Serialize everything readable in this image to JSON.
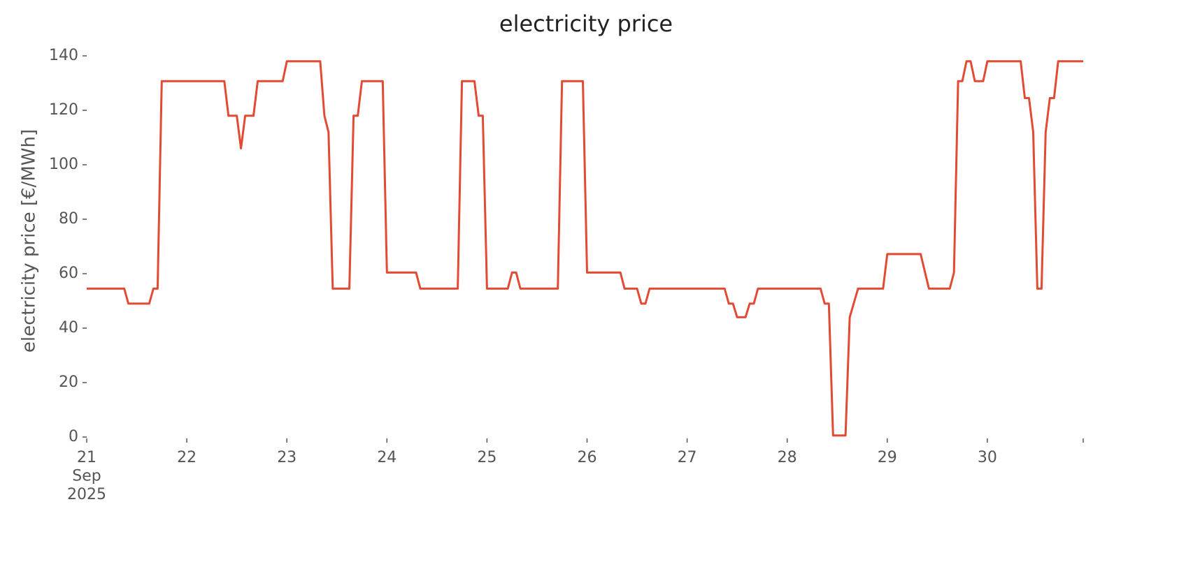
{
  "chart_data": {
    "type": "line",
    "title": "electricity price",
    "ylabel": "electricity price [€/MWh]",
    "xlim": [
      "2025-09-21T00:00",
      "2025-09-30T23:00"
    ],
    "xticks": [
      {
        "value": "2025-09-21T00:00",
        "label": "21\nSep\n2025"
      },
      {
        "value": "2025-09-22T00:00",
        "label": "22"
      },
      {
        "value": "2025-09-23T00:00",
        "label": "23"
      },
      {
        "value": "2025-09-24T00:00",
        "label": "24"
      },
      {
        "value": "2025-09-25T00:00",
        "label": "25"
      },
      {
        "value": "2025-09-26T00:00",
        "label": "26"
      },
      {
        "value": "2025-09-27T00:00",
        "label": "27"
      },
      {
        "value": "2025-09-28T00:00",
        "label": "28"
      },
      {
        "value": "2025-09-29T00:00",
        "label": "29"
      },
      {
        "value": "2025-09-30T00:00",
        "label": "30"
      }
    ],
    "ylim": [
      0,
      140
    ],
    "yticks": [
      0,
      20,
      40,
      60,
      80,
      100,
      120,
      140
    ],
    "grid": false,
    "x": [
      0,
      9,
      10,
      15,
      16,
      17,
      18,
      33,
      34,
      36,
      37,
      38,
      40,
      41,
      47,
      48,
      56,
      57,
      58,
      59,
      63,
      64,
      65,
      66,
      71,
      72,
      79,
      80,
      89,
      90,
      93,
      94,
      95,
      96,
      101,
      102,
      103,
      104,
      113,
      114,
      119,
      120,
      128,
      129,
      132,
      133,
      134,
      135,
      153,
      154,
      155,
      156,
      158,
      159,
      160,
      161,
      176,
      177,
      178,
      179,
      182,
      183,
      185,
      191,
      192,
      200,
      202,
      207,
      208,
      209,
      210,
      211,
      212,
      213,
      215,
      216,
      224,
      225,
      226,
      227,
      228,
      229,
      230,
      231,
      232,
      233,
      239
    ],
    "series": [
      {
        "name": "electricity price",
        "color": "#e24a33",
        "values": [
          54.5,
          54.5,
          49,
          49,
          54.5,
          54.5,
          130.7,
          130.7,
          118,
          118,
          106,
          118,
          118,
          130.7,
          130.7,
          138,
          138,
          118,
          112,
          54.5,
          54.5,
          118,
          118,
          130.7,
          130.7,
          60.4,
          60.4,
          54.5,
          54.5,
          130.7,
          130.7,
          118,
          118,
          54.5,
          54.5,
          60.4,
          60.4,
          54.5,
          54.5,
          130.7,
          130.7,
          60.4,
          60.4,
          54.5,
          54.5,
          49,
          49,
          54.5,
          54.5,
          49,
          49,
          44,
          44,
          49,
          49,
          54.5,
          54.5,
          49,
          49,
          0.6,
          0.6,
          44,
          54.5,
          54.5,
          67.2,
          67.2,
          54.5,
          54.5,
          60.4,
          130.7,
          130.7,
          138,
          138,
          130.7,
          130.7,
          138,
          138,
          124.5,
          124.5,
          112,
          54.5,
          54.5,
          112,
          124.5,
          124.5,
          138,
          138
        ]
      }
    ]
  }
}
